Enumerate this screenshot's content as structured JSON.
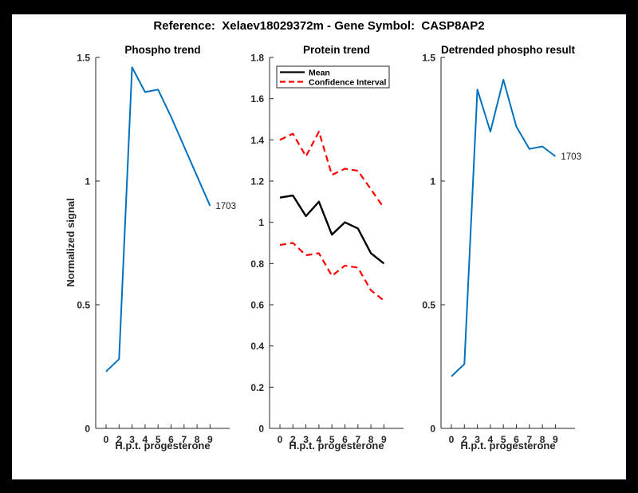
{
  "figure": {
    "title": "Reference:  Xelaev18029372m - Gene Symbol:  CASP8AP2",
    "frame_color": "#000000",
    "background_color": "#FFFFFF",
    "axis_color": "#262626"
  },
  "chart_data": [
    {
      "type": "line",
      "title": "Phospho trend",
      "xlabel": "H.p.t. progesterone",
      "ylabel": "Normalized signal",
      "x_tick_labels": [
        "0",
        "2",
        "3",
        "4",
        "5",
        "6",
        "7",
        "8",
        "9"
      ],
      "ylim": [
        0,
        1.5
      ],
      "y_tick_labels": [
        "0",
        "0.5",
        "1",
        "1.5"
      ],
      "grid": false,
      "legend_position": "none",
      "series": [
        {
          "name": "phospho-signal",
          "color": "#0072BD",
          "style": "solid",
          "width": 2,
          "values": [
            0.23,
            0.28,
            1.46,
            1.36,
            1.37,
            1.26,
            1.14,
            1.02,
            0.9
          ]
        }
      ],
      "annotation": "1703"
    },
    {
      "type": "line",
      "title": "Protein trend",
      "xlabel": "H.p.t. progesterone",
      "ylabel": "",
      "x_tick_labels": [
        "0",
        "2",
        "3",
        "4",
        "5",
        "6",
        "7",
        "8",
        "9"
      ],
      "ylim": [
        0,
        1.8
      ],
      "y_tick_labels": [
        "0",
        "0.2",
        "0.4",
        "0.6",
        "0.8",
        "1",
        "1.2",
        "1.4",
        "1.6",
        "1.8"
      ],
      "grid": false,
      "legend_position": "northwest",
      "legend": [
        {
          "label": "Mean",
          "color": "#000000",
          "style": "solid"
        },
        {
          "label": "Confidence Interval",
          "color": "#FF0000",
          "style": "dashed"
        }
      ],
      "series": [
        {
          "name": "mean",
          "color": "#000000",
          "style": "solid",
          "width": 2.4,
          "values": [
            1.12,
            1.13,
            1.03,
            1.1,
            0.94,
            1.0,
            0.97,
            0.85,
            0.8
          ]
        },
        {
          "name": "ci-upper",
          "color": "#FF0000",
          "style": "dashed",
          "width": 2.2,
          "values": [
            1.4,
            1.43,
            1.32,
            1.44,
            1.23,
            1.26,
            1.25,
            1.16,
            1.07
          ]
        },
        {
          "name": "ci-lower",
          "color": "#FF0000",
          "style": "dashed",
          "width": 2.2,
          "values": [
            0.89,
            0.9,
            0.84,
            0.85,
            0.74,
            0.79,
            0.78,
            0.67,
            0.62
          ]
        }
      ]
    },
    {
      "type": "line",
      "title": "Detrended phospho result",
      "xlabel": "H.p.t. progesterone",
      "ylabel": "",
      "x_tick_labels": [
        "0",
        "2",
        "3",
        "4",
        "5",
        "6",
        "7",
        "8",
        "9"
      ],
      "ylim": [
        0,
        1.5
      ],
      "y_tick_labels": [
        "0",
        "0.5",
        "1",
        "1.5"
      ],
      "grid": false,
      "legend_position": "none",
      "series": [
        {
          "name": "detrended-phospho-signal",
          "color": "#0072BD",
          "style": "solid",
          "width": 2,
          "values": [
            0.21,
            0.26,
            1.37,
            1.2,
            1.41,
            1.22,
            1.13,
            1.14,
            1.1
          ]
        }
      ],
      "annotation": "1703"
    }
  ]
}
